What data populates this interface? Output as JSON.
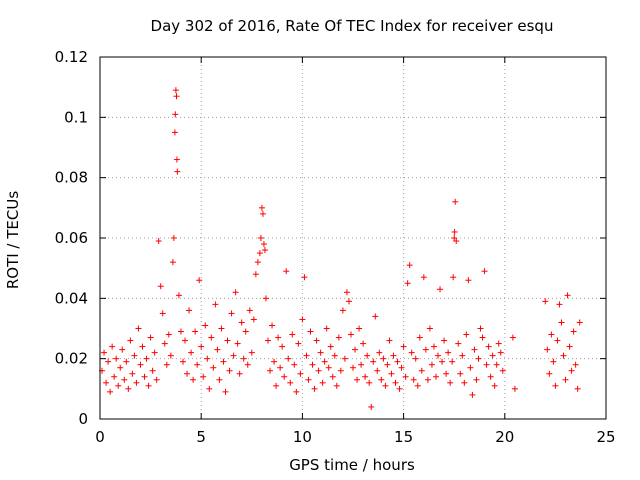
{
  "chart_data": {
    "type": "scatter",
    "title": "Day 302 of 2016, Rate Of TEC Index for receiver esqu",
    "xlabel": "GPS time / hours",
    "ylabel": "ROTI / TECUs",
    "xlim": [
      0,
      25
    ],
    "ylim": [
      0,
      0.12
    ],
    "x_ticks": [
      0,
      5,
      10,
      15,
      20,
      25
    ],
    "x_tick_labels": [
      "0",
      "5",
      "10",
      "15",
      "20",
      "25"
    ],
    "y_ticks": [
      0,
      0.02,
      0.04,
      0.06,
      0.08,
      0.1,
      0.12
    ],
    "y_tick_labels": [
      "0",
      "0.02",
      "0.04",
      "0.06",
      "0.08",
      "0.1",
      "0.12"
    ],
    "grid": true,
    "marker": "+",
    "marker_color": "#ff0000",
    "series": [
      {
        "name": "ROTI",
        "points": [
          [
            0.1,
            0.016
          ],
          [
            0.2,
            0.022
          ],
          [
            0.3,
            0.012
          ],
          [
            0.4,
            0.019
          ],
          [
            0.5,
            0.009
          ],
          [
            0.6,
            0.024
          ],
          [
            0.7,
            0.014
          ],
          [
            0.8,
            0.02
          ],
          [
            0.9,
            0.011
          ],
          [
            1.0,
            0.017
          ],
          [
            1.1,
            0.023
          ],
          [
            1.2,
            0.013
          ],
          [
            1.3,
            0.019
          ],
          [
            1.4,
            0.01
          ],
          [
            1.5,
            0.026
          ],
          [
            1.6,
            0.015
          ],
          [
            1.7,
            0.021
          ],
          [
            1.8,
            0.012
          ],
          [
            1.9,
            0.03
          ],
          [
            2.0,
            0.018
          ],
          [
            2.1,
            0.024
          ],
          [
            2.2,
            0.014
          ],
          [
            2.3,
            0.02
          ],
          [
            2.4,
            0.011
          ],
          [
            2.5,
            0.027
          ],
          [
            2.6,
            0.016
          ],
          [
            2.7,
            0.022
          ],
          [
            2.8,
            0.013
          ],
          [
            2.9,
            0.059
          ],
          [
            3.0,
            0.044
          ],
          [
            3.1,
            0.035
          ],
          [
            3.2,
            0.025
          ],
          [
            3.3,
            0.018
          ],
          [
            3.4,
            0.028
          ],
          [
            3.5,
            0.021
          ],
          [
            3.6,
            0.052
          ],
          [
            3.65,
            0.06
          ],
          [
            3.7,
            0.095
          ],
          [
            3.72,
            0.101
          ],
          [
            3.75,
            0.109
          ],
          [
            3.78,
            0.107
          ],
          [
            3.8,
            0.086
          ],
          [
            3.82,
            0.082
          ],
          [
            3.9,
            0.041
          ],
          [
            4.0,
            0.029
          ],
          [
            4.1,
            0.019
          ],
          [
            4.2,
            0.026
          ],
          [
            4.3,
            0.015
          ],
          [
            4.4,
            0.036
          ],
          [
            4.5,
            0.022
          ],
          [
            4.6,
            0.013
          ],
          [
            4.7,
            0.029
          ],
          [
            4.8,
            0.018
          ],
          [
            4.9,
            0.046
          ],
          [
            5.0,
            0.024
          ],
          [
            5.1,
            0.014
          ],
          [
            5.2,
            0.031
          ],
          [
            5.3,
            0.02
          ],
          [
            5.4,
            0.01
          ],
          [
            5.5,
            0.027
          ],
          [
            5.6,
            0.017
          ],
          [
            5.7,
            0.038
          ],
          [
            5.8,
            0.023
          ],
          [
            5.9,
            0.013
          ],
          [
            6.0,
            0.03
          ],
          [
            6.1,
            0.019
          ],
          [
            6.2,
            0.009
          ],
          [
            6.3,
            0.026
          ],
          [
            6.4,
            0.016
          ],
          [
            6.5,
            0.035
          ],
          [
            6.6,
            0.021
          ],
          [
            6.7,
            0.042
          ],
          [
            6.8,
            0.025
          ],
          [
            6.9,
            0.015
          ],
          [
            7.0,
            0.032
          ],
          [
            7.1,
            0.02
          ],
          [
            7.2,
            0.029
          ],
          [
            7.3,
            0.018
          ],
          [
            7.4,
            0.036
          ],
          [
            7.5,
            0.022
          ],
          [
            7.6,
            0.033
          ],
          [
            7.7,
            0.048
          ],
          [
            7.8,
            0.052
          ],
          [
            7.9,
            0.055
          ],
          [
            7.95,
            0.06
          ],
          [
            8.0,
            0.07
          ],
          [
            8.05,
            0.068
          ],
          [
            8.1,
            0.058
          ],
          [
            8.15,
            0.056
          ],
          [
            8.2,
            0.04
          ],
          [
            8.3,
            0.026
          ],
          [
            8.4,
            0.016
          ],
          [
            8.5,
            0.031
          ],
          [
            8.6,
            0.019
          ],
          [
            8.7,
            0.011
          ],
          [
            8.8,
            0.027
          ],
          [
            8.9,
            0.017
          ],
          [
            9.0,
            0.024
          ],
          [
            9.1,
            0.014
          ],
          [
            9.2,
            0.049
          ],
          [
            9.3,
            0.02
          ],
          [
            9.4,
            0.012
          ],
          [
            9.5,
            0.028
          ],
          [
            9.6,
            0.018
          ],
          [
            9.7,
            0.009
          ],
          [
            9.8,
            0.025
          ],
          [
            9.9,
            0.015
          ],
          [
            10.0,
            0.033
          ],
          [
            10.1,
            0.047
          ],
          [
            10.2,
            0.021
          ],
          [
            10.3,
            0.013
          ],
          [
            10.4,
            0.029
          ],
          [
            10.5,
            0.018
          ],
          [
            10.6,
            0.01
          ],
          [
            10.7,
            0.026
          ],
          [
            10.8,
            0.016
          ],
          [
            10.9,
            0.022
          ],
          [
            11.0,
            0.012
          ],
          [
            11.1,
            0.019
          ],
          [
            11.2,
            0.03
          ],
          [
            11.3,
            0.017
          ],
          [
            11.4,
            0.024
          ],
          [
            11.5,
            0.014
          ],
          [
            11.6,
            0.021
          ],
          [
            11.7,
            0.011
          ],
          [
            11.8,
            0.027
          ],
          [
            11.9,
            0.016
          ],
          [
            12.0,
            0.036
          ],
          [
            12.1,
            0.02
          ],
          [
            12.2,
            0.042
          ],
          [
            12.3,
            0.039
          ],
          [
            12.4,
            0.028
          ],
          [
            12.5,
            0.017
          ],
          [
            12.6,
            0.023
          ],
          [
            12.7,
            0.013
          ],
          [
            12.8,
            0.03
          ],
          [
            12.9,
            0.018
          ],
          [
            13.0,
            0.025
          ],
          [
            13.1,
            0.014
          ],
          [
            13.2,
            0.021
          ],
          [
            13.3,
            0.012
          ],
          [
            13.4,
            0.004
          ],
          [
            13.5,
            0.019
          ],
          [
            13.6,
            0.034
          ],
          [
            13.7,
            0.016
          ],
          [
            13.8,
            0.022
          ],
          [
            13.9,
            0.013
          ],
          [
            14.0,
            0.02
          ],
          [
            14.1,
            0.011
          ],
          [
            14.2,
            0.018
          ],
          [
            14.3,
            0.026
          ],
          [
            14.4,
            0.015
          ],
          [
            14.5,
            0.021
          ],
          [
            14.6,
            0.012
          ],
          [
            14.7,
            0.019
          ],
          [
            14.8,
            0.01
          ],
          [
            14.9,
            0.017
          ],
          [
            15.0,
            0.024
          ],
          [
            15.1,
            0.014
          ],
          [
            15.2,
            0.045
          ],
          [
            15.3,
            0.051
          ],
          [
            15.4,
            0.022
          ],
          [
            15.5,
            0.013
          ],
          [
            15.6,
            0.02
          ],
          [
            15.7,
            0.011
          ],
          [
            15.8,
            0.027
          ],
          [
            15.9,
            0.016
          ],
          [
            16.0,
            0.047
          ],
          [
            16.1,
            0.023
          ],
          [
            16.2,
            0.013
          ],
          [
            16.3,
            0.03
          ],
          [
            16.4,
            0.018
          ],
          [
            16.5,
            0.024
          ],
          [
            16.6,
            0.014
          ],
          [
            16.7,
            0.021
          ],
          [
            16.8,
            0.043
          ],
          [
            16.9,
            0.019
          ],
          [
            17.0,
            0.026
          ],
          [
            17.1,
            0.015
          ],
          [
            17.2,
            0.022
          ],
          [
            17.3,
            0.012
          ],
          [
            17.4,
            0.019
          ],
          [
            17.45,
            0.047
          ],
          [
            17.5,
            0.06
          ],
          [
            17.52,
            0.062
          ],
          [
            17.55,
            0.072
          ],
          [
            17.6,
            0.059
          ],
          [
            17.7,
            0.025
          ],
          [
            17.8,
            0.015
          ],
          [
            17.9,
            0.021
          ],
          [
            18.0,
            0.012
          ],
          [
            18.1,
            0.028
          ],
          [
            18.2,
            0.046
          ],
          [
            18.3,
            0.017
          ],
          [
            18.4,
            0.008
          ],
          [
            18.5,
            0.023
          ],
          [
            18.6,
            0.013
          ],
          [
            18.7,
            0.02
          ],
          [
            18.8,
            0.03
          ],
          [
            18.9,
            0.027
          ],
          [
            19.0,
            0.049
          ],
          [
            19.1,
            0.018
          ],
          [
            19.2,
            0.024
          ],
          [
            19.3,
            0.014
          ],
          [
            19.4,
            0.021
          ],
          [
            19.5,
            0.011
          ],
          [
            19.6,
            0.018
          ],
          [
            19.7,
            0.025
          ],
          [
            19.8,
            0.022
          ],
          [
            19.9,
            0.016
          ],
          [
            20.4,
            0.027
          ],
          [
            20.5,
            0.01
          ],
          [
            22.0,
            0.039
          ],
          [
            22.1,
            0.023
          ],
          [
            22.2,
            0.015
          ],
          [
            22.3,
            0.028
          ],
          [
            22.4,
            0.019
          ],
          [
            22.5,
            0.011
          ],
          [
            22.6,
            0.026
          ],
          [
            22.7,
            0.038
          ],
          [
            22.8,
            0.032
          ],
          [
            22.9,
            0.021
          ],
          [
            23.0,
            0.013
          ],
          [
            23.1,
            0.041
          ],
          [
            23.2,
            0.024
          ],
          [
            23.3,
            0.016
          ],
          [
            23.4,
            0.029
          ],
          [
            23.5,
            0.018
          ],
          [
            23.6,
            0.01
          ],
          [
            23.7,
            0.032
          ]
        ]
      }
    ]
  }
}
